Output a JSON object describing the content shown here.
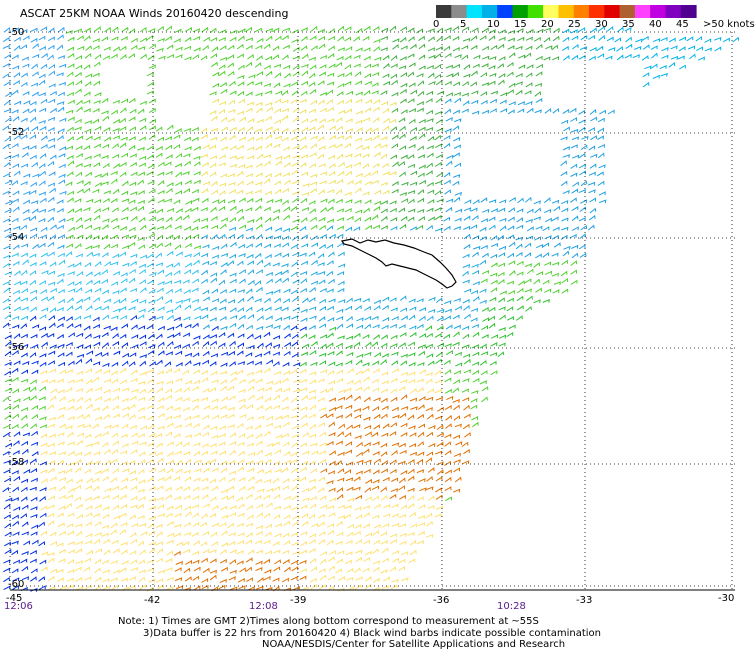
{
  "title": "ASCAT 25KM NOAA Winds 20160420 descending",
  "legend": {
    "ticks": [
      "0",
      "5",
      "10",
      "15",
      "20",
      "25",
      "30",
      "35",
      "40",
      "45",
      ">50 knots"
    ],
    "colors": [
      "#3a3a3a",
      "#8c8c8c",
      "#00e4ff",
      "#00b0e8",
      "#0040ff",
      "#00a000",
      "#40e000",
      "#ffff60",
      "#ffc000",
      "#ff8000",
      "#ff3000",
      "#e00000",
      "#b06030",
      "#ff40ff",
      "#c000e0",
      "#8000c0",
      "#500090"
    ]
  },
  "axes": {
    "lat_labels": [
      "-50",
      "-52",
      "-54",
      "-56",
      "-58",
      "-60"
    ],
    "lon_labels": [
      "-45",
      "-42",
      "-39",
      "-36",
      "-33",
      "-30"
    ]
  },
  "times": [
    "12:06",
    "12:08",
    "10:28"
  ],
  "notes": {
    "line1": "Note: 1) Times are GMT 2)Times along bottom correspond to measurement at ~55S",
    "line2": "3)Data buffer is 22 hrs from 20160420 4) Black wind barbs indicate possible contamination",
    "line3": "NOAA/NESDIS/Center for Satellite Applications and Research"
  }
}
